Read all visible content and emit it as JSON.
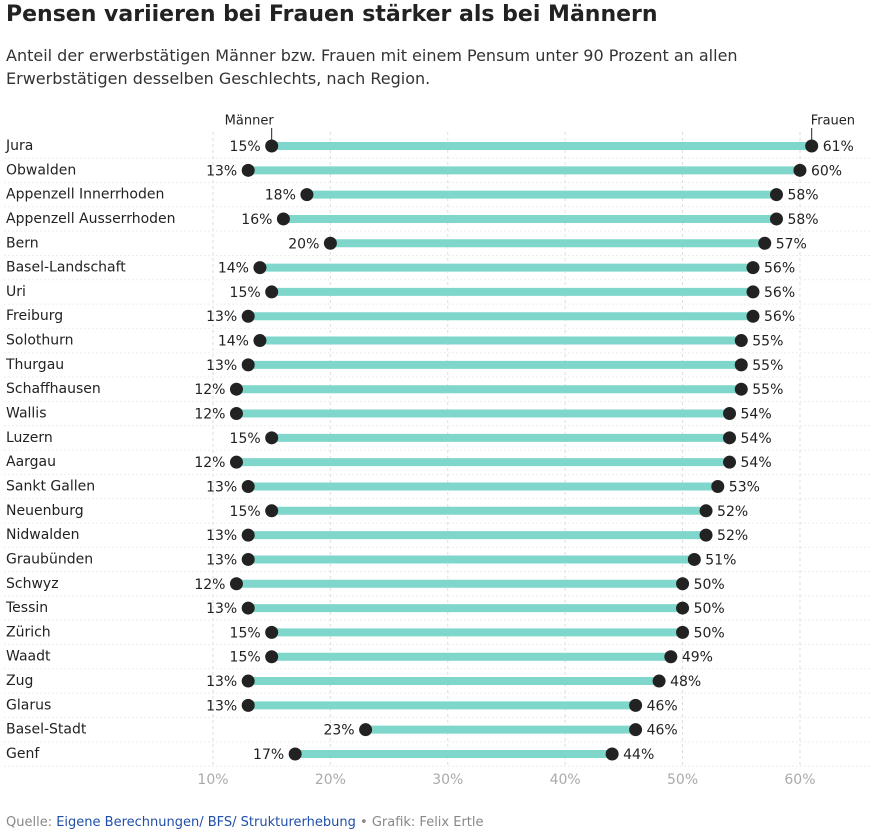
{
  "chart_data": {
    "type": "dumbbell",
    "title": "Pensen variieren bei Frauen stärker als bei Männern",
    "subtitle": "Anteil der erwerbstätigen Männer bzw. Frauen mit einem Pensum unter 90 Prozent an allen Erwerbstätigen desselben Geschlechts, nach Region.",
    "categories": [
      "Jura",
      "Obwalden",
      "Appenzell Innerrhoden",
      "Appenzell Ausserrhoden",
      "Bern",
      "Basel-Landschaft",
      "Uri",
      "Freiburg",
      "Solothurn",
      "Thurgau",
      "Schaffhausen",
      "Wallis",
      "Luzern",
      "Aargau",
      "Sankt Gallen",
      "Neuenburg",
      "Nidwalden",
      "Graubünden",
      "Schwyz",
      "Tessin",
      "Zürich",
      "Waadt",
      "Zug",
      "Glarus",
      "Basel-Stadt",
      "Genf"
    ],
    "series": [
      {
        "name": "Männer",
        "color": "#222222",
        "values": [
          15,
          13,
          18,
          16,
          20,
          14,
          15,
          13,
          14,
          13,
          12,
          12,
          15,
          12,
          13,
          15,
          13,
          13,
          12,
          13,
          15,
          15,
          13,
          13,
          23,
          17
        ],
        "value_labels": [
          "15%",
          "13%",
          "18%",
          "16%",
          "20%",
          "14%",
          "15%",
          "13%",
          "14%",
          "13%",
          "12%",
          "12%",
          "15%",
          "12%",
          "13%",
          "15%",
          "13%",
          "13%",
          "12%",
          "13%",
          "15%",
          "15%",
          "13%",
          "13%",
          "23%",
          "17%"
        ]
      },
      {
        "name": "Frauen",
        "color": "#222222",
        "values": [
          61,
          60,
          58,
          58,
          57,
          56,
          56,
          56,
          55,
          55,
          55,
          54,
          54,
          54,
          53,
          52,
          52,
          51,
          50,
          50,
          50,
          49,
          48,
          46,
          46,
          44
        ],
        "value_labels": [
          "61%",
          "60%",
          "58%",
          "58%",
          "57%",
          "56%",
          "56%",
          "56%",
          "55%",
          "55%",
          "55%",
          "54%",
          "54%",
          "54%",
          "53%",
          "52%",
          "52%",
          "51%",
          "50%",
          "50%",
          "50%",
          "49%",
          "48%",
          "46%",
          "46%",
          "44%"
        ]
      }
    ],
    "bar_color": "#7fd6cb",
    "xlim": [
      8,
      66
    ],
    "xticks": [
      {
        "value": 10,
        "label": "10%"
      },
      {
        "value": 20,
        "label": "20%"
      },
      {
        "value": 30,
        "label": "30%"
      },
      {
        "value": 40,
        "label": "40%"
      },
      {
        "value": 50,
        "label": "50%"
      },
      {
        "value": 60,
        "label": "60%"
      }
    ],
    "grid": true,
    "source": {
      "prefix": "Quelle:",
      "link": "Eigene Berechnungen/ BFS/ Strukturerhebung",
      "credit": "• Grafik: Felix Ertle"
    }
  }
}
